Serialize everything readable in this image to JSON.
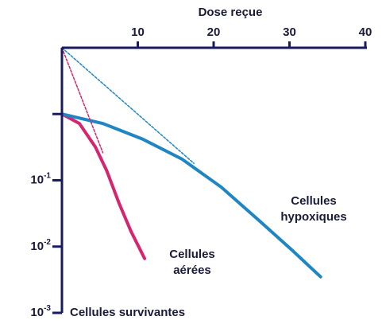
{
  "chart_data": {
    "type": "line",
    "xlabel": "Dose reçue",
    "ylabel": "Cellules survivantes",
    "xlim": [
      0,
      40
    ],
    "xticks": [
      10,
      20,
      30,
      40
    ],
    "ylim": [
      0.001,
      10
    ],
    "yscale": "log",
    "yticks": [
      {
        "value": 0.001,
        "label": "10-3"
      },
      {
        "value": 0.01,
        "label": "10-2"
      },
      {
        "value": 0.1,
        "label": "10-1"
      },
      {
        "value": 1,
        "label": null
      }
    ],
    "series": [
      {
        "name": "Cellules aérées",
        "color": "#d6246e",
        "dashed": false,
        "x": [
          0,
          2.3,
          4.4,
          5.9,
          7.5,
          9.1,
          10.9
        ],
        "values": [
          1,
          0.72,
          0.32,
          0.14,
          0.046,
          0.017,
          0.0066
        ]
      },
      {
        "name": "Cellules hypoxiques",
        "color": "#1f86c4",
        "dashed": false,
        "x": [
          0,
          5.4,
          10.6,
          15.8,
          21,
          26.3,
          30.4,
          34.1
        ],
        "values": [
          1,
          0.72,
          0.42,
          0.21,
          0.079,
          0.023,
          0.0087,
          0.0035
        ]
      },
      {
        "color": "#d6246e",
        "dashed": true,
        "x": [
          0,
          5.4
        ],
        "values": [
          10,
          0.26
        ]
      },
      {
        "color": "#1f86c4",
        "dashed": true,
        "x": [
          0,
          17.4
        ],
        "values": [
          10,
          0.18
        ]
      }
    ]
  }
}
